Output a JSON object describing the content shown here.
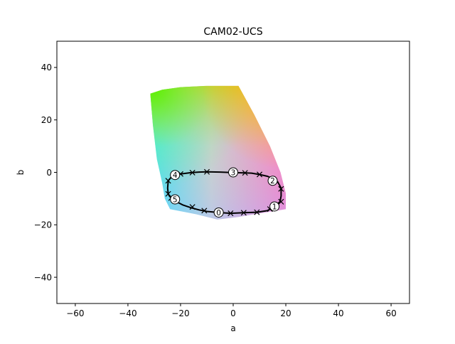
{
  "chart_data": {
    "type": "scatter",
    "title": "CAM02-UCS",
    "xlabel": "a",
    "ylabel": "b",
    "xlim": [
      -67,
      67
    ],
    "ylim": [
      -50,
      50
    ],
    "xticks": [
      -60,
      -40,
      -20,
      0,
      20,
      40,
      60
    ],
    "yticks": [
      -40,
      -20,
      0,
      20,
      40
    ],
    "xtick_labels": [
      "−60",
      "−40",
      "−20",
      "0",
      "20",
      "40",
      "60"
    ],
    "ytick_labels": [
      "−40",
      "−20",
      "0",
      "20",
      "40"
    ],
    "grid": false,
    "gamut_outline": [
      [
        -31.5,
        30.0
      ],
      [
        -27,
        31.5
      ],
      [
        -20,
        32.5
      ],
      [
        -10,
        33
      ],
      [
        0,
        33
      ],
      [
        2,
        33
      ],
      [
        8,
        22
      ],
      [
        14,
        10
      ],
      [
        18,
        0
      ],
      [
        20,
        -8
      ],
      [
        20,
        -14
      ],
      [
        14,
        -15
      ],
      [
        8,
        -16
      ],
      [
        2,
        -17
      ],
      [
        -6,
        -18
      ],
      [
        -14,
        -16
      ],
      [
        -24,
        -14
      ],
      [
        -26,
        -10
      ],
      [
        -27,
        -4
      ],
      [
        -29,
        5
      ],
      [
        -30.5,
        18
      ],
      [
        -31.5,
        30.0
      ]
    ],
    "path_points": [
      [
        -5.5,
        -15.3
      ],
      [
        -1,
        -15.6
      ],
      [
        4,
        -15.4
      ],
      [
        9,
        -15.2
      ],
      [
        13,
        -14.6
      ],
      [
        15.7,
        -13.0
      ],
      [
        17.8,
        -11.2
      ],
      [
        18.2,
        -9
      ],
      [
        18.2,
        -6
      ],
      [
        16.9,
        -3.6
      ],
      [
        15,
        -2.3
      ],
      [
        13,
        -1.5
      ],
      [
        10,
        -0.8
      ],
      [
        7,
        -0.3
      ],
      [
        4.5,
        -0.2
      ],
      [
        0,
        -0.1
      ],
      [
        -5,
        0.1
      ],
      [
        -10,
        0.2
      ],
      [
        -13,
        0.1
      ],
      [
        -16,
        -0.1
      ],
      [
        -20,
        -0.6
      ],
      [
        -22.1,
        -1.0
      ],
      [
        -23.5,
        -1.8
      ],
      [
        -24.7,
        -3.2
      ],
      [
        -24.9,
        -6.0
      ],
      [
        -24.7,
        -8.2
      ],
      [
        -23.6,
        -9.8
      ],
      [
        -22.1,
        -10.3
      ],
      [
        -21,
        -11.5
      ],
      [
        -19,
        -12.5
      ],
      [
        -16,
        -13.5
      ],
      [
        -13,
        -14.3
      ],
      [
        -10,
        -14.9
      ],
      [
        -5.5,
        -15.3
      ]
    ],
    "x_markers": [
      [
        -23.6,
        -9.8
      ],
      [
        -24.7,
        -8.2
      ],
      [
        -24.7,
        -3.2
      ],
      [
        -15.5,
        -13.2
      ],
      [
        -11,
        -14.6
      ],
      [
        -1,
        -15.6
      ],
      [
        4,
        -15.4
      ],
      [
        9,
        -15.2
      ],
      [
        14,
        -14.0
      ],
      [
        18.2,
        -11.2
      ],
      [
        18.2,
        -6.3
      ],
      [
        10,
        -0.8
      ],
      [
        4.5,
        -0.2
      ],
      [
        -10,
        0.2
      ],
      [
        -15.5,
        -0.1
      ],
      [
        -20,
        -0.6
      ]
    ],
    "labeled_points": [
      {
        "label": "0",
        "a": -5.5,
        "b": -15.3
      },
      {
        "label": "1",
        "a": 15.7,
        "b": -13.0
      },
      {
        "label": "2",
        "a": 15.0,
        "b": -3.2
      },
      {
        "label": "3",
        "a": 0.0,
        "b": 0.0
      },
      {
        "label": "4",
        "a": -22.1,
        "b": -1.0
      },
      {
        "label": "5",
        "a": -22.1,
        "b": -10.3
      }
    ]
  }
}
